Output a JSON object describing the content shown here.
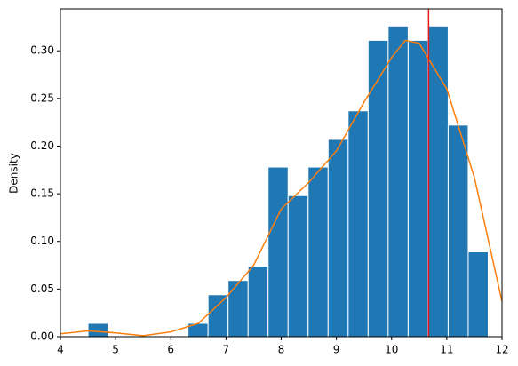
{
  "chart_data": {
    "type": "histogram",
    "ylabel": "Density",
    "bins": [
      4.5,
      4.8625,
      5.225,
      5.5875,
      5.95,
      6.3125,
      6.675,
      7.0375,
      7.4,
      7.7625,
      8.125,
      8.4875,
      8.85,
      9.2125,
      9.575,
      9.9375,
      10.3,
      10.6625,
      11.025,
      11.3875,
      11.75
    ],
    "values": [
      0.014,
      0,
      0,
      0,
      0,
      0.014,
      0.044,
      0.059,
      0.074,
      0.178,
      0.148,
      0.178,
      0.207,
      0.237,
      0.311,
      0.326,
      0.311,
      0.326,
      0.222,
      0.089
    ],
    "color": "#1f77b4",
    "kde": {
      "color": "#ff7f0e",
      "x": [
        4,
        4.5,
        5,
        5.5,
        6,
        6.5,
        7,
        7.5,
        8,
        8.5,
        9,
        9.5,
        10,
        10.25,
        10.5,
        11,
        11.5,
        12
      ],
      "values": [
        0.003,
        0.006,
        0.004,
        0.001,
        0.005,
        0.014,
        0.041,
        0.075,
        0.134,
        0.162,
        0.195,
        0.246,
        0.293,
        0.311,
        0.308,
        0.26,
        0.167,
        0.037
      ]
    },
    "vline": {
      "value": 10.67,
      "color": "#e41a1c"
    },
    "xlim": [
      4,
      12
    ],
    "xticks": [
      4,
      5,
      6,
      7,
      8,
      9,
      10,
      11,
      12
    ],
    "ylim": [
      0,
      0.344
    ],
    "yticks": [
      {
        "value": 0,
        "label": "0.00"
      },
      {
        "value": 0.05,
        "label": "0.05"
      },
      {
        "value": 0.1,
        "label": "0.10"
      },
      {
        "value": 0.15,
        "label": "0.15"
      },
      {
        "value": 0.2,
        "label": "0.20"
      },
      {
        "value": 0.25,
        "label": "0.25"
      },
      {
        "value": 0.3,
        "label": "0.30"
      }
    ]
  }
}
